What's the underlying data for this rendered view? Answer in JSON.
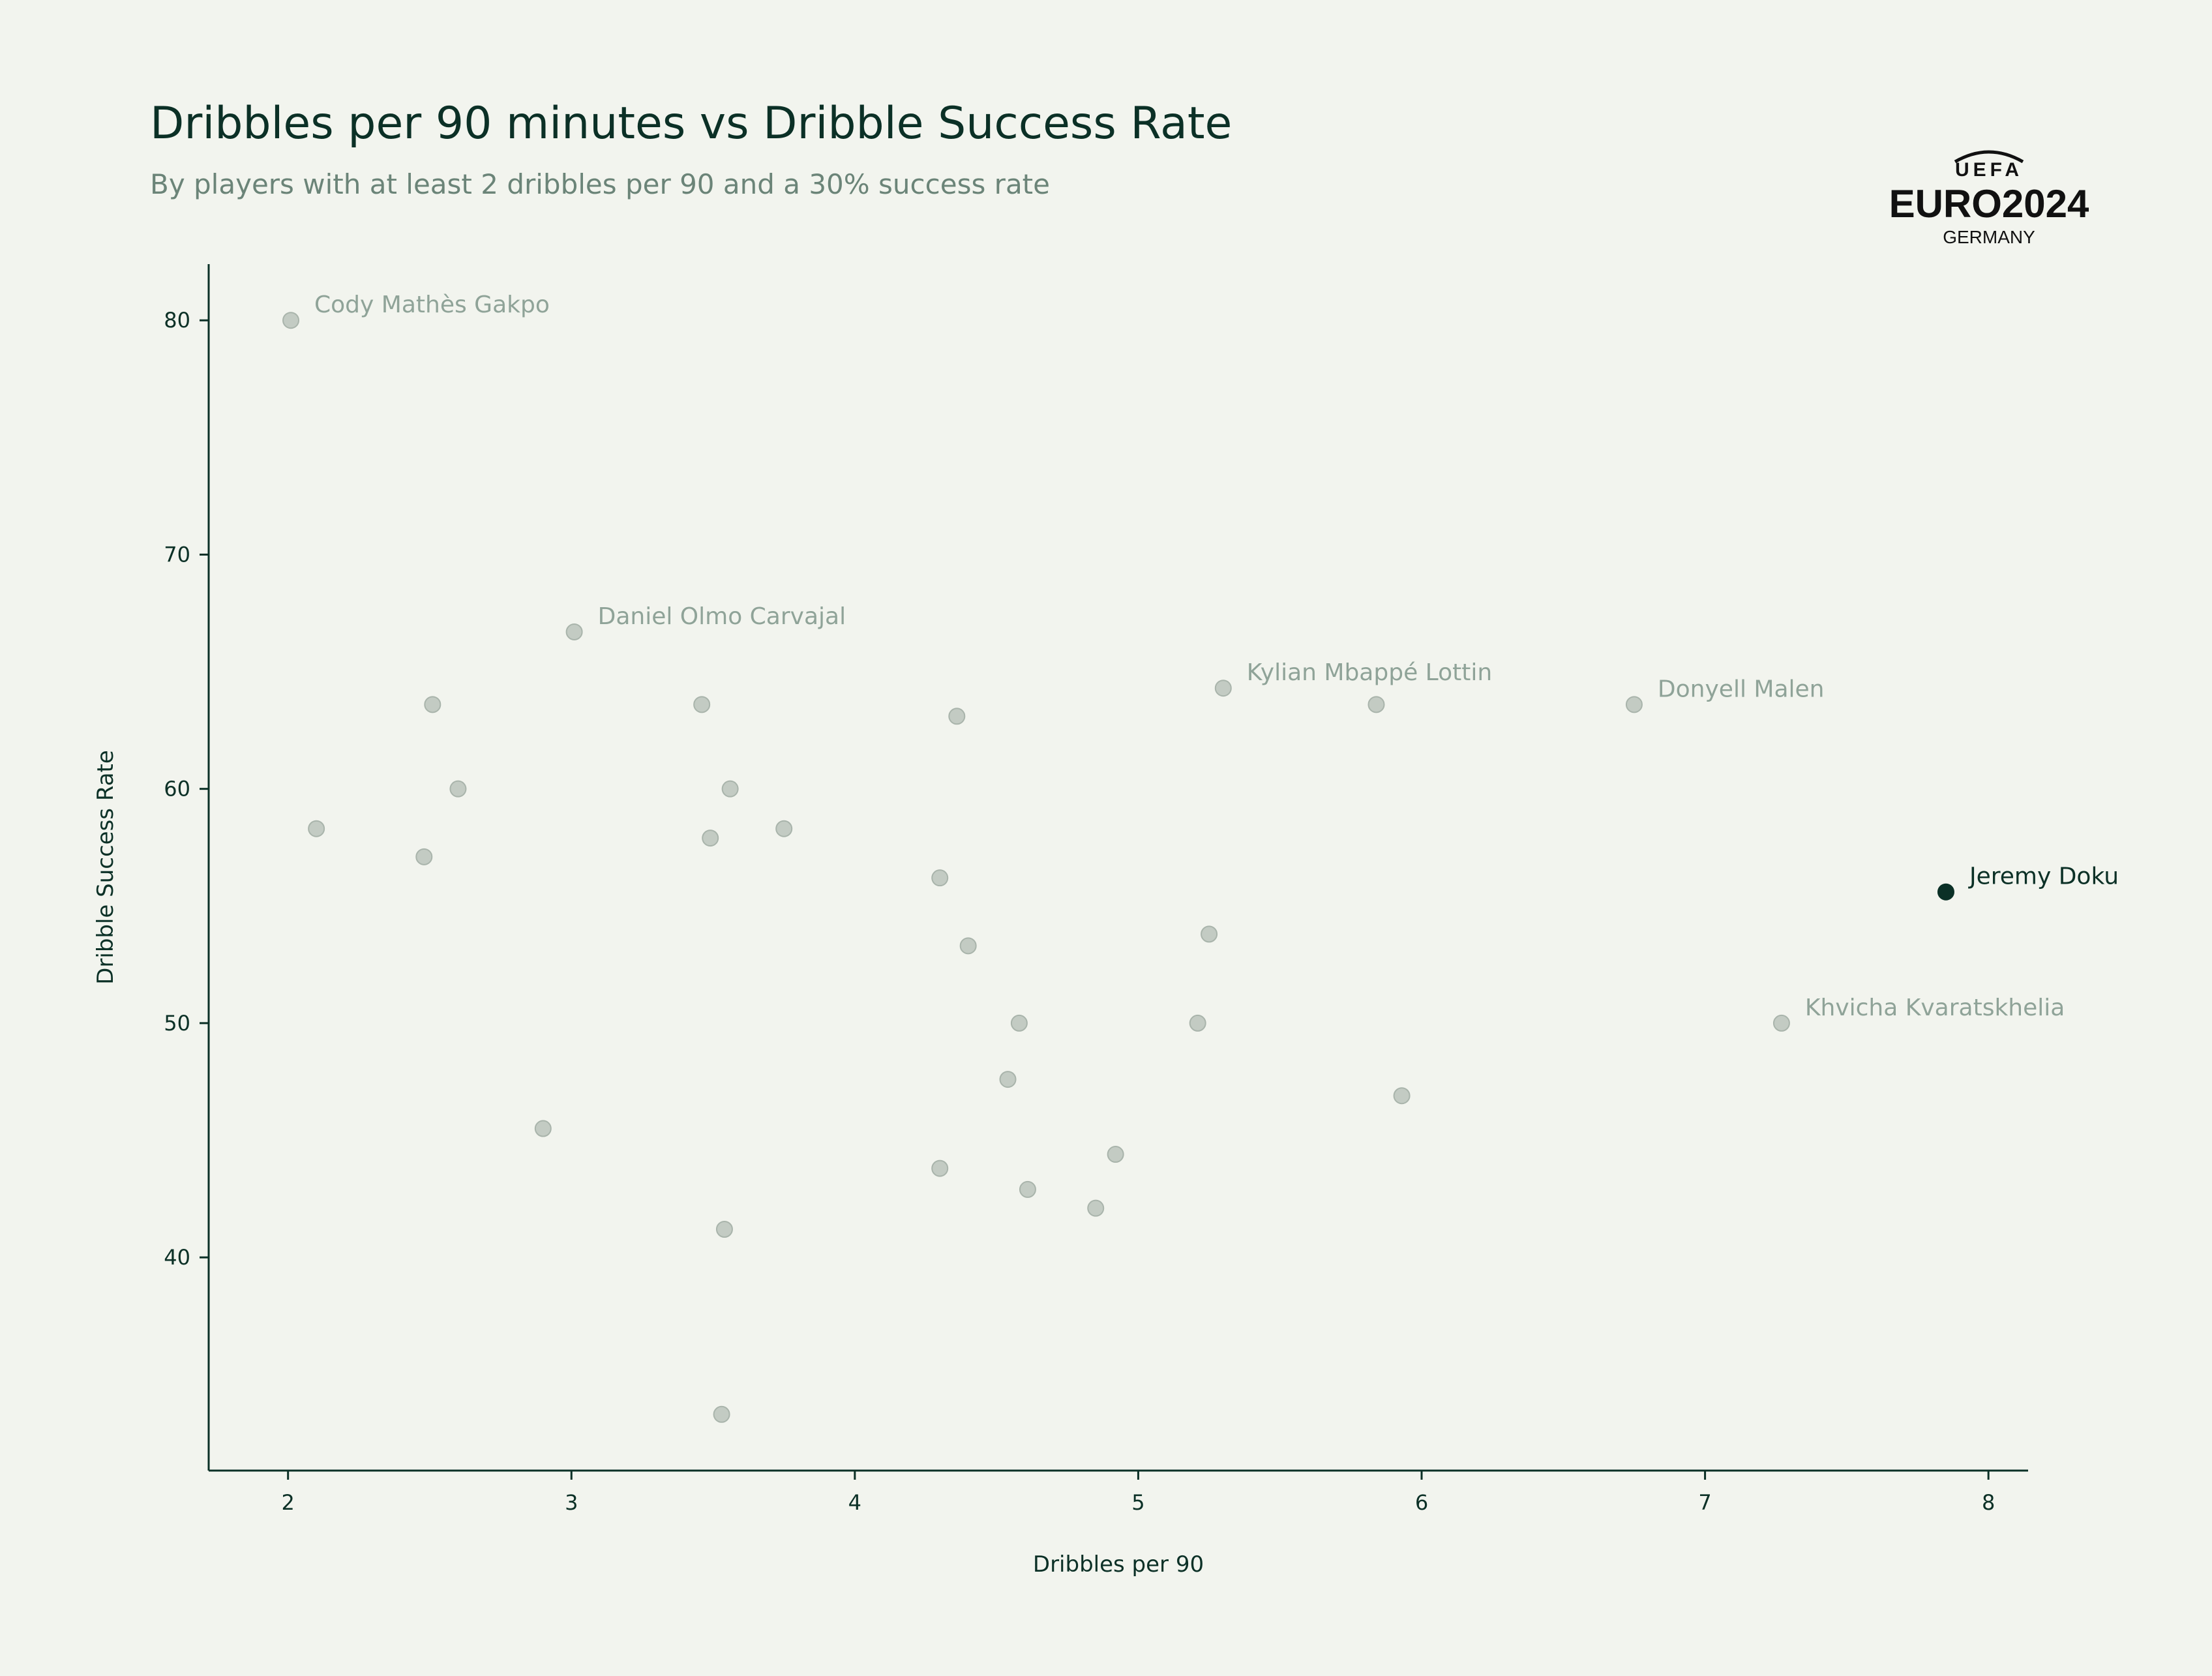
{
  "title": "Dribbles per 90 minutes vs Dribble Success Rate",
  "subtitle": "By players with at least 2 dribbles per 90 and a 30% success rate",
  "logo": {
    "top_text": "UEFA",
    "main_text": "EURO2024",
    "sub_text": "GERMANY"
  },
  "colors": {
    "background": "#f2f4ee",
    "highlight": "#0b3026",
    "muted_point": "#c3cbc3",
    "muted_label": "#8fa398"
  },
  "chart_data": {
    "type": "scatter",
    "xlabel": "Dribbles per 90",
    "ylabel": "Dribble Success Rate",
    "xlim": [
      1.72,
      8.14
    ],
    "ylim": [
      30.9,
      82.4
    ],
    "xticks": [
      2,
      3,
      4,
      5,
      6,
      7,
      8
    ],
    "yticks": [
      40,
      50,
      60,
      70,
      80
    ],
    "grid": false,
    "points": [
      {
        "x": 2.01,
        "y": 80.0,
        "label": "Cody Mathès Gakpo"
      },
      {
        "x": 3.01,
        "y": 66.7,
        "label": "Daniel Olmo Carvajal"
      },
      {
        "x": 5.3,
        "y": 64.3,
        "label": "Kylian Mbappé Lottin"
      },
      {
        "x": 6.75,
        "y": 63.6,
        "label": "Donyell Malen"
      },
      {
        "x": 7.85,
        "y": 55.6,
        "label": "Jeremy Doku",
        "highlight": true
      },
      {
        "x": 7.27,
        "y": 50.0,
        "label": "Khvicha Kvaratskhelia"
      },
      {
        "x": 2.51,
        "y": 63.6
      },
      {
        "x": 3.46,
        "y": 63.6
      },
      {
        "x": 4.36,
        "y": 63.1
      },
      {
        "x": 5.84,
        "y": 63.6
      },
      {
        "x": 2.6,
        "y": 60.0
      },
      {
        "x": 3.56,
        "y": 60.0
      },
      {
        "x": 2.1,
        "y": 58.3
      },
      {
        "x": 3.75,
        "y": 58.3
      },
      {
        "x": 2.48,
        "y": 57.1
      },
      {
        "x": 3.49,
        "y": 57.9
      },
      {
        "x": 4.3,
        "y": 56.2
      },
      {
        "x": 5.25,
        "y": 53.8
      },
      {
        "x": 4.4,
        "y": 53.3
      },
      {
        "x": 4.58,
        "y": 50.0
      },
      {
        "x": 5.21,
        "y": 50.0
      },
      {
        "x": 4.54,
        "y": 47.6
      },
      {
        "x": 5.93,
        "y": 46.9
      },
      {
        "x": 2.9,
        "y": 45.5
      },
      {
        "x": 4.92,
        "y": 44.4
      },
      {
        "x": 4.3,
        "y": 43.8
      },
      {
        "x": 4.61,
        "y": 42.9
      },
      {
        "x": 4.85,
        "y": 42.1
      },
      {
        "x": 3.54,
        "y": 41.2
      },
      {
        "x": 3.53,
        "y": 33.3
      }
    ]
  }
}
